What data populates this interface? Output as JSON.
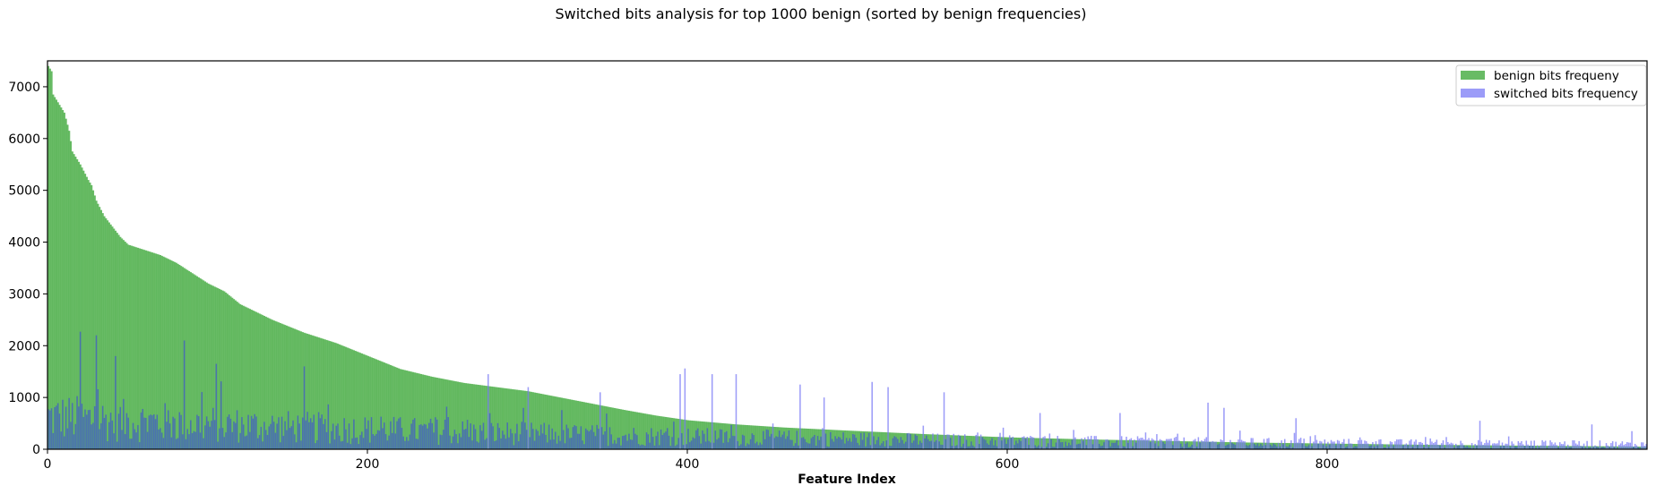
{
  "chart_data": {
    "type": "bar",
    "title": "Switched bits analysis for top 1000 benign (sorted by benign frequencies)",
    "xlabel": "Feature Index",
    "ylabel": "",
    "xlim": [
      0,
      1000
    ],
    "ylim": [
      0,
      7500
    ],
    "x_ticks": [
      0,
      200,
      400,
      600,
      800
    ],
    "y_ticks": [
      0,
      1000,
      2000,
      3000,
      4000,
      5000,
      6000,
      7000
    ],
    "grid": false,
    "legend_position": "top-right",
    "bar_count": 1000,
    "series": [
      {
        "name": "benign bits frequeny",
        "color": "#4daf4a",
        "opacity": 0.85,
        "shape": "sorted descending",
        "anchors": [
          [
            0,
            7400
          ],
          [
            2,
            7300
          ],
          [
            3,
            6850
          ],
          [
            10,
            6500
          ],
          [
            13,
            6150
          ],
          [
            15,
            5750
          ],
          [
            20,
            5500
          ],
          [
            25,
            5200
          ],
          [
            27,
            5100
          ],
          [
            30,
            4800
          ],
          [
            35,
            4500
          ],
          [
            40,
            4300
          ],
          [
            45,
            4100
          ],
          [
            50,
            3950
          ],
          [
            60,
            3850
          ],
          [
            70,
            3750
          ],
          [
            80,
            3600
          ],
          [
            90,
            3400
          ],
          [
            100,
            3200
          ],
          [
            110,
            3050
          ],
          [
            120,
            2800
          ],
          [
            130,
            2650
          ],
          [
            140,
            2500
          ],
          [
            160,
            2250
          ],
          [
            180,
            2050
          ],
          [
            200,
            1800
          ],
          [
            220,
            1550
          ],
          [
            240,
            1400
          ],
          [
            260,
            1280
          ],
          [
            280,
            1200
          ],
          [
            300,
            1120
          ],
          [
            320,
            1000
          ],
          [
            340,
            880
          ],
          [
            360,
            760
          ],
          [
            380,
            650
          ],
          [
            400,
            560
          ],
          [
            430,
            480
          ],
          [
            460,
            420
          ],
          [
            500,
            360
          ],
          [
            550,
            290
          ],
          [
            600,
            230
          ],
          [
            650,
            190
          ],
          [
            700,
            160
          ],
          [
            750,
            130
          ],
          [
            800,
            110
          ],
          [
            850,
            90
          ],
          [
            900,
            75
          ],
          [
            950,
            62
          ],
          [
            999,
            50
          ]
        ]
      },
      {
        "name": "switched bits frequency",
        "color": "#7b7bf5",
        "overlap_color": "#4a6fb3",
        "opacity": 0.75,
        "shape": "noisy",
        "typical_range": [
          0,
          900
        ],
        "peaks": [
          [
            20,
            2270
          ],
          [
            30,
            2200
          ],
          [
            42,
            1800
          ],
          [
            85,
            2100
          ],
          [
            105,
            1650
          ],
          [
            160,
            1600
          ],
          [
            275,
            1450
          ],
          [
            300,
            1200
          ],
          [
            345,
            1100
          ],
          [
            395,
            1450
          ],
          [
            398,
            1560
          ],
          [
            415,
            1450
          ],
          [
            430,
            1450
          ],
          [
            470,
            1250
          ],
          [
            485,
            1000
          ],
          [
            515,
            1300
          ],
          [
            525,
            1200
          ],
          [
            560,
            1100
          ],
          [
            620,
            700
          ],
          [
            670,
            700
          ],
          [
            725,
            900
          ],
          [
            735,
            800
          ],
          [
            780,
            600
          ],
          [
            895,
            550
          ],
          [
            965,
            480
          ],
          [
            990,
            350
          ]
        ]
      }
    ]
  }
}
